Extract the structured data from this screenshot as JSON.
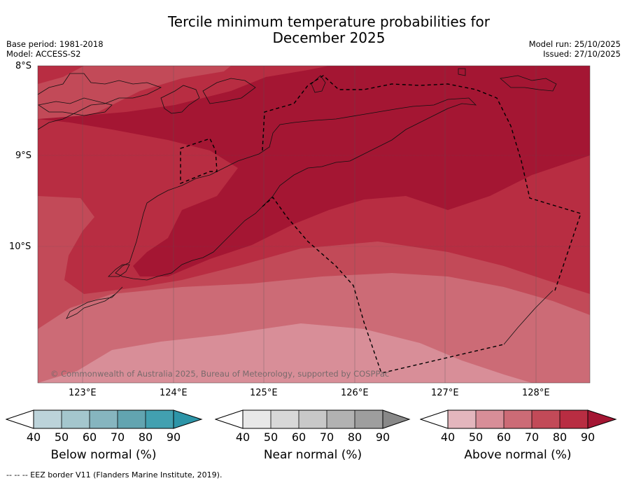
{
  "title_line1": "Tercile minimum temperature probabilities for",
  "title_line2": "December 2025",
  "meta": {
    "base_period": "Base period: 1981-2018",
    "model": "Model: ACCESS-S2",
    "model_run": "Model run: 25/10/2025",
    "issued": "Issued: 27/10/2025"
  },
  "lat_labels": [
    "8°S",
    "9°S",
    "10°S"
  ],
  "lon_labels": [
    "123°E",
    "124°E",
    "125°E",
    "126°E",
    "127°E",
    "128°E"
  ],
  "copyright": "© Commonwealth of Australia 2025, Bureau of Meteorology, supported by COSPPac",
  "colorbars": [
    {
      "title": "Below normal (%)",
      "ticks": [
        "40",
        "50",
        "60",
        "70",
        "80",
        "90"
      ],
      "colors": [
        "#bcd3da",
        "#a4c6cd",
        "#86b5bf",
        "#62a4b0",
        "#42a0b0",
        "#2d95a8"
      ]
    },
    {
      "title": "Near normal (%)",
      "ticks": [
        "40",
        "50",
        "60",
        "70",
        "80",
        "90"
      ],
      "colors": [
        "#e8e8e8",
        "#d8d8d8",
        "#c8c8c8",
        "#b2b2b2",
        "#9e9e9e",
        "#888888"
      ]
    },
    {
      "title": "Above normal (%)",
      "ticks": [
        "40",
        "50",
        "60",
        "70",
        "80",
        "90"
      ],
      "colors": [
        "#e3b6bd",
        "#d88e98",
        "#cc6b76",
        "#c24a58",
        "#b82d42",
        "#a41633"
      ]
    }
  ],
  "footnote": "--  --  -- EEZ border V11 (Flanders Marine Institute, 2019)."
}
